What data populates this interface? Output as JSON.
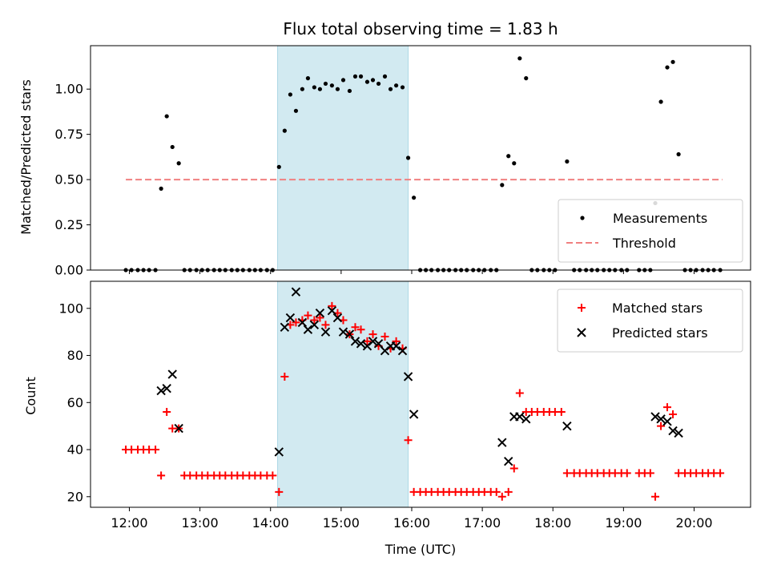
{
  "chart_data": [
    {
      "type": "scatter",
      "title": "Flux total observing time = 1.83 h",
      "ylabel": "Matched/Predicted stars",
      "xlabel": "",
      "x_unit": "hours (UTC)",
      "xlim": [
        11.45,
        20.8
      ],
      "ylim": [
        0,
        1.24
      ],
      "y_ticks": [
        0.0,
        0.25,
        0.5,
        0.75,
        1.0
      ],
      "y_tick_labels": [
        "0.00",
        "0.25",
        "0.50",
        "0.75",
        "1.00"
      ],
      "grid": false,
      "legend_position": "lower-right",
      "highlight_band": {
        "x_start": 14.1,
        "x_end": 15.95,
        "color": "#add8e6"
      },
      "threshold": {
        "name": "Threshold",
        "value": 0.5,
        "x_start": 11.95,
        "x_end": 20.4,
        "color": "#f08080"
      },
      "series": [
        {
          "name": "Measurements",
          "color": "#000000",
          "marker": "dot",
          "points": [
            [
              11.95,
              0
            ],
            [
              12.03,
              0
            ],
            [
              12.12,
              0
            ],
            [
              12.2,
              0
            ],
            [
              12.28,
              0
            ],
            [
              12.37,
              0
            ],
            [
              12.45,
              0.45
            ],
            [
              12.53,
              0.85
            ],
            [
              12.61,
              0.68
            ],
            [
              12.7,
              0.59
            ],
            [
              12.78,
              0
            ],
            [
              12.86,
              0
            ],
            [
              12.95,
              0
            ],
            [
              13.03,
              0
            ],
            [
              13.11,
              0
            ],
            [
              13.2,
              0
            ],
            [
              13.28,
              0
            ],
            [
              13.36,
              0
            ],
            [
              13.45,
              0
            ],
            [
              13.53,
              0
            ],
            [
              13.61,
              0
            ],
            [
              13.7,
              0
            ],
            [
              13.78,
              0
            ],
            [
              13.86,
              0
            ],
            [
              13.95,
              0
            ],
            [
              14.03,
              0
            ],
            [
              14.12,
              0.57
            ],
            [
              14.2,
              0.77
            ],
            [
              14.28,
              0.97
            ],
            [
              14.36,
              0.88
            ],
            [
              14.45,
              1.0
            ],
            [
              14.53,
              1.06
            ],
            [
              14.62,
              1.01
            ],
            [
              14.7,
              1.0
            ],
            [
              14.78,
              1.03
            ],
            [
              14.87,
              1.02
            ],
            [
              14.95,
              1.0
            ],
            [
              15.03,
              1.05
            ],
            [
              15.12,
              0.99
            ],
            [
              15.2,
              1.07
            ],
            [
              15.28,
              1.07
            ],
            [
              15.37,
              1.04
            ],
            [
              15.45,
              1.05
            ],
            [
              15.53,
              1.03
            ],
            [
              15.62,
              1.07
            ],
            [
              15.7,
              1.0
            ],
            [
              15.78,
              1.02
            ],
            [
              15.87,
              1.01
            ],
            [
              15.95,
              0.62
            ],
            [
              16.03,
              0.4
            ],
            [
              16.12,
              0
            ],
            [
              16.2,
              0
            ],
            [
              16.28,
              0
            ],
            [
              16.37,
              0
            ],
            [
              16.45,
              0
            ],
            [
              16.53,
              0
            ],
            [
              16.62,
              0
            ],
            [
              16.7,
              0
            ],
            [
              16.78,
              0
            ],
            [
              16.87,
              0
            ],
            [
              16.95,
              0
            ],
            [
              17.03,
              0
            ],
            [
              17.12,
              0
            ],
            [
              17.2,
              0
            ],
            [
              17.28,
              0.47
            ],
            [
              17.37,
              0.63
            ],
            [
              17.45,
              0.59
            ],
            [
              17.53,
              1.17
            ],
            [
              17.62,
              1.06
            ],
            [
              17.7,
              0
            ],
            [
              17.78,
              0
            ],
            [
              17.87,
              0
            ],
            [
              17.95,
              0
            ],
            [
              18.03,
              0
            ],
            [
              18.2,
              0.6
            ],
            [
              18.3,
              0
            ],
            [
              18.38,
              0
            ],
            [
              18.47,
              0
            ],
            [
              18.55,
              0
            ],
            [
              18.63,
              0
            ],
            [
              18.72,
              0
            ],
            [
              18.8,
              0
            ],
            [
              18.88,
              0
            ],
            [
              18.97,
              0
            ],
            [
              19.05,
              0
            ],
            [
              19.22,
              0
            ],
            [
              19.3,
              0
            ],
            [
              19.38,
              0
            ],
            [
              19.45,
              0.37
            ],
            [
              19.53,
              0.93
            ],
            [
              19.62,
              1.12
            ],
            [
              19.7,
              1.15
            ],
            [
              19.78,
              0.64
            ],
            [
              19.87,
              0
            ],
            [
              19.95,
              0
            ],
            [
              20.03,
              0
            ],
            [
              20.12,
              0
            ],
            [
              20.2,
              0
            ],
            [
              20.28,
              0
            ],
            [
              20.37,
              0
            ]
          ]
        }
      ]
    },
    {
      "type": "scatter",
      "title": "",
      "ylabel": "Count",
      "xlabel": "Time (UTC)",
      "x_unit": "hours (UTC)",
      "xlim": [
        11.45,
        20.8
      ],
      "ylim": [
        15.5,
        111.5
      ],
      "x_ticks": [
        12,
        13,
        14,
        15,
        16,
        17,
        18,
        19,
        20
      ],
      "x_tick_labels": [
        "12:00",
        "13:00",
        "14:00",
        "15:00",
        "16:00",
        "17:00",
        "18:00",
        "19:00",
        "20:00"
      ],
      "y_ticks": [
        20,
        40,
        60,
        80,
        100
      ],
      "y_tick_labels": [
        "20",
        "40",
        "60",
        "80",
        "100"
      ],
      "grid": false,
      "legend_position": "upper-right",
      "highlight_band": {
        "x_start": 14.1,
        "x_end": 15.95,
        "color": "#add8e6"
      },
      "series": [
        {
          "name": "Matched stars",
          "color": "#ff0000",
          "marker": "plus",
          "points": [
            [
              11.95,
              40
            ],
            [
              12.03,
              40
            ],
            [
              12.12,
              40
            ],
            [
              12.2,
              40
            ],
            [
              12.28,
              40
            ],
            [
              12.37,
              40
            ],
            [
              12.45,
              29
            ],
            [
              12.53,
              56
            ],
            [
              12.61,
              49
            ],
            [
              12.7,
              49
            ],
            [
              12.78,
              29
            ],
            [
              12.86,
              29
            ],
            [
              12.95,
              29
            ],
            [
              13.03,
              29
            ],
            [
              13.11,
              29
            ],
            [
              13.2,
              29
            ],
            [
              13.28,
              29
            ],
            [
              13.36,
              29
            ],
            [
              13.45,
              29
            ],
            [
              13.53,
              29
            ],
            [
              13.61,
              29
            ],
            [
              13.7,
              29
            ],
            [
              13.78,
              29
            ],
            [
              13.86,
              29
            ],
            [
              13.95,
              29
            ],
            [
              14.03,
              29
            ],
            [
              14.12,
              22
            ],
            [
              14.2,
              71
            ],
            [
              14.28,
              93
            ],
            [
              14.36,
              94
            ],
            [
              14.45,
              95
            ],
            [
              14.53,
              97
            ],
            [
              14.62,
              95
            ],
            [
              14.7,
              96
            ],
            [
              14.78,
              93
            ],
            [
              14.87,
              101
            ],
            [
              14.95,
              98
            ],
            [
              15.03,
              95
            ],
            [
              15.12,
              89
            ],
            [
              15.2,
              92
            ],
            [
              15.28,
              91
            ],
            [
              15.37,
              86
            ],
            [
              15.45,
              89
            ],
            [
              15.53,
              84
            ],
            [
              15.62,
              88
            ],
            [
              15.7,
              83
            ],
            [
              15.78,
              86
            ],
            [
              15.87,
              83
            ],
            [
              15.95,
              44
            ],
            [
              16.03,
              22
            ],
            [
              16.12,
              22
            ],
            [
              16.2,
              22
            ],
            [
              16.28,
              22
            ],
            [
              16.37,
              22
            ],
            [
              16.45,
              22
            ],
            [
              16.53,
              22
            ],
            [
              16.62,
              22
            ],
            [
              16.7,
              22
            ],
            [
              16.78,
              22
            ],
            [
              16.87,
              22
            ],
            [
              16.95,
              22
            ],
            [
              17.03,
              22
            ],
            [
              17.12,
              22
            ],
            [
              17.2,
              22
            ],
            [
              17.28,
              20
            ],
            [
              17.37,
              22
            ],
            [
              17.45,
              32
            ],
            [
              17.53,
              64
            ],
            [
              17.62,
              56
            ],
            [
              17.7,
              56
            ],
            [
              17.78,
              56
            ],
            [
              17.87,
              56
            ],
            [
              17.95,
              56
            ],
            [
              18.03,
              56
            ],
            [
              18.12,
              56
            ],
            [
              18.2,
              30
            ],
            [
              18.3,
              30
            ],
            [
              18.38,
              30
            ],
            [
              18.47,
              30
            ],
            [
              18.55,
              30
            ],
            [
              18.63,
              30
            ],
            [
              18.72,
              30
            ],
            [
              18.8,
              30
            ],
            [
              18.88,
              30
            ],
            [
              18.97,
              30
            ],
            [
              19.05,
              30
            ],
            [
              19.22,
              30
            ],
            [
              19.3,
              30
            ],
            [
              19.38,
              30
            ],
            [
              19.45,
              20
            ],
            [
              19.53,
              50
            ],
            [
              19.62,
              58
            ],
            [
              19.7,
              55
            ],
            [
              19.78,
              30
            ],
            [
              19.87,
              30
            ],
            [
              19.95,
              30
            ],
            [
              20.03,
              30
            ],
            [
              20.12,
              30
            ],
            [
              20.2,
              30
            ],
            [
              20.28,
              30
            ],
            [
              20.37,
              30
            ]
          ]
        },
        {
          "name": "Predicted stars",
          "color": "#000000",
          "marker": "x",
          "points": [
            [
              12.45,
              65
            ],
            [
              12.53,
              66
            ],
            [
              12.61,
              72
            ],
            [
              12.7,
              49
            ],
            [
              14.12,
              39
            ],
            [
              14.2,
              92
            ],
            [
              14.28,
              96
            ],
            [
              14.36,
              107
            ],
            [
              14.45,
              94
            ],
            [
              14.53,
              91
            ],
            [
              14.62,
              93
            ],
            [
              14.7,
              98
            ],
            [
              14.78,
              90
            ],
            [
              14.87,
              99
            ],
            [
              14.95,
              96
            ],
            [
              15.03,
              90
            ],
            [
              15.12,
              89
            ],
            [
              15.2,
              86
            ],
            [
              15.28,
              85
            ],
            [
              15.37,
              84
            ],
            [
              15.45,
              86
            ],
            [
              15.53,
              85
            ],
            [
              15.62,
              82
            ],
            [
              15.7,
              84
            ],
            [
              15.78,
              84
            ],
            [
              15.87,
              82
            ],
            [
              15.95,
              71
            ],
            [
              16.03,
              55
            ],
            [
              17.28,
              43
            ],
            [
              17.37,
              35
            ],
            [
              17.45,
              54
            ],
            [
              17.53,
              54
            ],
            [
              17.62,
              53
            ],
            [
              18.2,
              50
            ],
            [
              19.45,
              54
            ],
            [
              19.53,
              53
            ],
            [
              19.62,
              52
            ],
            [
              19.7,
              48
            ],
            [
              19.78,
              47
            ]
          ]
        }
      ]
    }
  ]
}
